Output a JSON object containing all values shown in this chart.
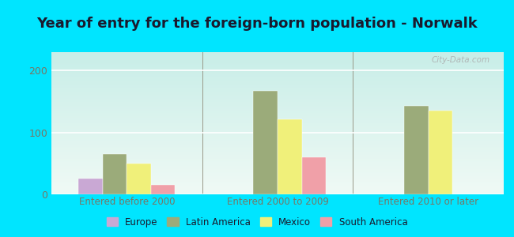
{
  "title": "Year of entry for the foreign-born population - Norwalk",
  "categories": [
    "Entered before 2000",
    "Entered 2000 to 2009",
    "Entered 2010 or later"
  ],
  "series": {
    "Europe": [
      25,
      0,
      0
    ],
    "Latin America": [
      65,
      168,
      143
    ],
    "Mexico": [
      50,
      122,
      135
    ],
    "South America": [
      15,
      60,
      0
    ]
  },
  "colors": {
    "Europe": "#c9a8d4",
    "Latin America": "#9bab7a",
    "Mexico": "#f0f07a",
    "South America": "#f0a0a8"
  },
  "ylim": [
    0,
    230
  ],
  "yticks": [
    0,
    100,
    200
  ],
  "outer_background": "#00e5ff",
  "plot_bg_color": "#e0f5ec",
  "title_fontsize": 13,
  "title_color": "#1a1a2e",
  "tick_label_color": "#777766",
  "watermark": "City-Data.com",
  "bar_width": 0.16,
  "legend_label_color": "#1a1a2e"
}
